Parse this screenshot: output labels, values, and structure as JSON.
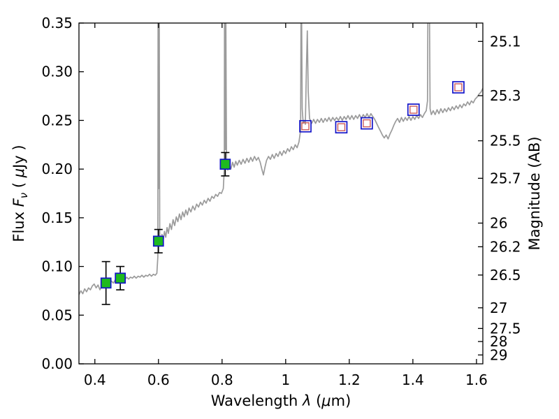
{
  "figure": {
    "background": "#ffffff"
  },
  "chart_data": {
    "type": "line",
    "title": "",
    "xlabel": "Wavelength λ (μm)",
    "ylabel": "Flux Fν ( μJy )",
    "ylabel_right": "Magnitude (AB)",
    "xlabel_parts": [
      {
        "t": "Wavelength  "
      },
      {
        "t": "λ",
        "i": true
      },
      {
        "t": " ("
      },
      {
        "t": "μ",
        "i": true
      },
      {
        "t": "m)"
      }
    ],
    "ylabel_left_parts": [
      {
        "t": "Flux  "
      },
      {
        "t": "F",
        "i": true
      },
      {
        "t": "ν",
        "i": true,
        "sub": true
      },
      {
        "t": "  ( "
      },
      {
        "t": "μ",
        "i": true
      },
      {
        "t": "Jy )"
      }
    ],
    "xlim": [
      0.35,
      1.62
    ],
    "ylim": [
      0.0,
      0.35
    ],
    "grid": false,
    "legend": null,
    "xticks": [
      0.4,
      0.6,
      0.8,
      1.0,
      1.2,
      1.4,
      1.6
    ],
    "xtick_labels": [
      "0.4",
      "0.6",
      "0.8",
      "1",
      "1.2",
      "1.4",
      "1.6"
    ],
    "yticks_left": [
      0.0,
      0.05,
      0.1,
      0.15,
      0.2,
      0.25,
      0.3,
      0.35
    ],
    "ytick_labels_left": [
      "0.00",
      "0.05",
      "0.10",
      "0.15",
      "0.20",
      "0.25",
      "0.30",
      "0.35"
    ],
    "right_axis": {
      "label": "Magnitude (AB)",
      "tick_magnitudes": [
        25.1,
        25.3,
        25.5,
        25.7,
        26,
        26.2,
        26.5,
        27,
        27.5,
        28,
        29
      ],
      "tick_labels": [
        "25.1",
        "25.3",
        "25.5",
        "25.7",
        "26",
        "26.2",
        "26.5",
        "27",
        "27.5",
        "28",
        "29"
      ],
      "ab_zeropoint": 23.9
    },
    "colors": {
      "spectrum": "#9b9b9b",
      "observed_face": "#1fba1f",
      "marker_edge_blue": "#1414c8",
      "model_inner_red": "#cc5a5a",
      "errorbar": "#000000",
      "axis": "#000000"
    },
    "series": [
      {
        "name": "model-spectrum",
        "style": "line",
        "points": [
          [
            0.35,
            0.071
          ],
          [
            0.356,
            0.075
          ],
          [
            0.362,
            0.072
          ],
          [
            0.368,
            0.077
          ],
          [
            0.374,
            0.074
          ],
          [
            0.38,
            0.078
          ],
          [
            0.386,
            0.076
          ],
          [
            0.392,
            0.08
          ],
          [
            0.398,
            0.082
          ],
          [
            0.404,
            0.078
          ],
          [
            0.41,
            0.081
          ],
          [
            0.416,
            0.076
          ],
          [
            0.422,
            0.08
          ],
          [
            0.428,
            0.083
          ],
          [
            0.434,
            0.08
          ],
          [
            0.44,
            0.084
          ],
          [
            0.446,
            0.082
          ],
          [
            0.452,
            0.085
          ],
          [
            0.458,
            0.083
          ],
          [
            0.464,
            0.086
          ],
          [
            0.47,
            0.084
          ],
          [
            0.476,
            0.087
          ],
          [
            0.482,
            0.085
          ],
          [
            0.488,
            0.088
          ],
          [
            0.494,
            0.086
          ],
          [
            0.5,
            0.089
          ],
          [
            0.506,
            0.087
          ],
          [
            0.512,
            0.089
          ],
          [
            0.518,
            0.088
          ],
          [
            0.524,
            0.09
          ],
          [
            0.53,
            0.088
          ],
          [
            0.536,
            0.09
          ],
          [
            0.542,
            0.089
          ],
          [
            0.548,
            0.091
          ],
          [
            0.554,
            0.089
          ],
          [
            0.56,
            0.091
          ],
          [
            0.566,
            0.09
          ],
          [
            0.572,
            0.092
          ],
          [
            0.578,
            0.09
          ],
          [
            0.584,
            0.092
          ],
          [
            0.59,
            0.091
          ],
          [
            0.595,
            0.093
          ],
          [
            0.598,
            0.11
          ],
          [
            0.599,
            0.42
          ],
          [
            0.601,
            0.18
          ],
          [
            0.602,
            0.42
          ],
          [
            0.604,
            0.13
          ],
          [
            0.607,
            0.124
          ],
          [
            0.611,
            0.133
          ],
          [
            0.615,
            0.127
          ],
          [
            0.619,
            0.136
          ],
          [
            0.623,
            0.13
          ],
          [
            0.627,
            0.14
          ],
          [
            0.631,
            0.134
          ],
          [
            0.636,
            0.144
          ],
          [
            0.641,
            0.138
          ],
          [
            0.646,
            0.148
          ],
          [
            0.651,
            0.142
          ],
          [
            0.656,
            0.151
          ],
          [
            0.661,
            0.146
          ],
          [
            0.666,
            0.154
          ],
          [
            0.671,
            0.148
          ],
          [
            0.676,
            0.156
          ],
          [
            0.681,
            0.151
          ],
          [
            0.686,
            0.158
          ],
          [
            0.691,
            0.153
          ],
          [
            0.696,
            0.16
          ],
          [
            0.702,
            0.156
          ],
          [
            0.708,
            0.162
          ],
          [
            0.714,
            0.158
          ],
          [
            0.72,
            0.164
          ],
          [
            0.726,
            0.161
          ],
          [
            0.732,
            0.166
          ],
          [
            0.738,
            0.163
          ],
          [
            0.744,
            0.168
          ],
          [
            0.75,
            0.165
          ],
          [
            0.756,
            0.17
          ],
          [
            0.762,
            0.167
          ],
          [
            0.768,
            0.172
          ],
          [
            0.774,
            0.17
          ],
          [
            0.78,
            0.174
          ],
          [
            0.786,
            0.172
          ],
          [
            0.792,
            0.176
          ],
          [
            0.798,
            0.175
          ],
          [
            0.804,
            0.18
          ],
          [
            0.807,
            0.2
          ],
          [
            0.808,
            0.42
          ],
          [
            0.81,
            0.22
          ],
          [
            0.811,
            0.42
          ],
          [
            0.814,
            0.205
          ],
          [
            0.818,
            0.199
          ],
          [
            0.823,
            0.205
          ],
          [
            0.828,
            0.2
          ],
          [
            0.833,
            0.207
          ],
          [
            0.838,
            0.202
          ],
          [
            0.843,
            0.208
          ],
          [
            0.848,
            0.204
          ],
          [
            0.854,
            0.209
          ],
          [
            0.86,
            0.205
          ],
          [
            0.866,
            0.21
          ],
          [
            0.872,
            0.206
          ],
          [
            0.878,
            0.211
          ],
          [
            0.884,
            0.207
          ],
          [
            0.89,
            0.212
          ],
          [
            0.896,
            0.208
          ],
          [
            0.902,
            0.213
          ],
          [
            0.908,
            0.209
          ],
          [
            0.914,
            0.212
          ],
          [
            0.92,
            0.207
          ],
          [
            0.925,
            0.2
          ],
          [
            0.93,
            0.194
          ],
          [
            0.935,
            0.202
          ],
          [
            0.94,
            0.209
          ],
          [
            0.946,
            0.213
          ],
          [
            0.952,
            0.21
          ],
          [
            0.958,
            0.215
          ],
          [
            0.964,
            0.211
          ],
          [
            0.97,
            0.216
          ],
          [
            0.976,
            0.213
          ],
          [
            0.982,
            0.218
          ],
          [
            0.988,
            0.214
          ],
          [
            0.994,
            0.219
          ],
          [
            1.0,
            0.216
          ],
          [
            1.006,
            0.221
          ],
          [
            1.012,
            0.218
          ],
          [
            1.018,
            0.223
          ],
          [
            1.024,
            0.22
          ],
          [
            1.03,
            0.225
          ],
          [
            1.036,
            0.222
          ],
          [
            1.042,
            0.228
          ],
          [
            1.047,
            0.24
          ],
          [
            1.049,
            0.42
          ],
          [
            1.052,
            0.262
          ],
          [
            1.055,
            0.247
          ],
          [
            1.058,
            0.25
          ],
          [
            1.062,
            0.246
          ],
          [
            1.065,
            0.3
          ],
          [
            1.068,
            0.342
          ],
          [
            1.071,
            0.28
          ],
          [
            1.075,
            0.252
          ],
          [
            1.082,
            0.247
          ],
          [
            1.088,
            0.251
          ],
          [
            1.094,
            0.247
          ],
          [
            1.1,
            0.251
          ],
          [
            1.106,
            0.248
          ],
          [
            1.112,
            0.252
          ],
          [
            1.118,
            0.248
          ],
          [
            1.124,
            0.252
          ],
          [
            1.13,
            0.249
          ],
          [
            1.136,
            0.253
          ],
          [
            1.142,
            0.249
          ],
          [
            1.148,
            0.253
          ],
          [
            1.154,
            0.25
          ],
          [
            1.16,
            0.253
          ],
          [
            1.166,
            0.25
          ],
          [
            1.172,
            0.254
          ],
          [
            1.178,
            0.25
          ],
          [
            1.184,
            0.254
          ],
          [
            1.19,
            0.251
          ],
          [
            1.196,
            0.255
          ],
          [
            1.202,
            0.251
          ],
          [
            1.208,
            0.255
          ],
          [
            1.214,
            0.251
          ],
          [
            1.22,
            0.255
          ],
          [
            1.226,
            0.252
          ],
          [
            1.232,
            0.256
          ],
          [
            1.238,
            0.252
          ],
          [
            1.244,
            0.256
          ],
          [
            1.25,
            0.253
          ],
          [
            1.256,
            0.257
          ],
          [
            1.262,
            0.253
          ],
          [
            1.268,
            0.257
          ],
          [
            1.274,
            0.254
          ],
          [
            1.28,
            0.251
          ],
          [
            1.286,
            0.247
          ],
          [
            1.292,
            0.243
          ],
          [
            1.298,
            0.239
          ],
          [
            1.304,
            0.235
          ],
          [
            1.31,
            0.232
          ],
          [
            1.316,
            0.235
          ],
          [
            1.322,
            0.231
          ],
          [
            1.328,
            0.236
          ],
          [
            1.334,
            0.24
          ],
          [
            1.34,
            0.245
          ],
          [
            1.346,
            0.249
          ],
          [
            1.352,
            0.252
          ],
          [
            1.358,
            0.248
          ],
          [
            1.364,
            0.253
          ],
          [
            1.37,
            0.249
          ],
          [
            1.376,
            0.253
          ],
          [
            1.382,
            0.25
          ],
          [
            1.388,
            0.254
          ],
          [
            1.394,
            0.25
          ],
          [
            1.4,
            0.254
          ],
          [
            1.406,
            0.251
          ],
          [
            1.412,
            0.255
          ],
          [
            1.418,
            0.252
          ],
          [
            1.424,
            0.256
          ],
          [
            1.43,
            0.253
          ],
          [
            1.436,
            0.257
          ],
          [
            1.442,
            0.26
          ],
          [
            1.446,
            0.27
          ],
          [
            1.448,
            0.42
          ],
          [
            1.451,
            0.42
          ],
          [
            1.454,
            0.262
          ],
          [
            1.458,
            0.256
          ],
          [
            1.464,
            0.26
          ],
          [
            1.47,
            0.256
          ],
          [
            1.476,
            0.261
          ],
          [
            1.482,
            0.257
          ],
          [
            1.488,
            0.262
          ],
          [
            1.494,
            0.258
          ],
          [
            1.5,
            0.262
          ],
          [
            1.506,
            0.259
          ],
          [
            1.512,
            0.263
          ],
          [
            1.518,
            0.26
          ],
          [
            1.524,
            0.264
          ],
          [
            1.53,
            0.261
          ],
          [
            1.536,
            0.265
          ],
          [
            1.542,
            0.262
          ],
          [
            1.548,
            0.266
          ],
          [
            1.554,
            0.263
          ],
          [
            1.56,
            0.267
          ],
          [
            1.566,
            0.265
          ],
          [
            1.572,
            0.269
          ],
          [
            1.578,
            0.266
          ],
          [
            1.584,
            0.27
          ],
          [
            1.59,
            0.268
          ],
          [
            1.596,
            0.272
          ],
          [
            1.602,
            0.274
          ],
          [
            1.608,
            0.277
          ],
          [
            1.614,
            0.279
          ],
          [
            1.62,
            0.283
          ]
        ]
      },
      {
        "name": "observed-photometry",
        "style": "filled-square-with-errorbar",
        "points": [
          {
            "x": 0.435,
            "y": 0.083,
            "yerr": 0.022
          },
          {
            "x": 0.48,
            "y": 0.088,
            "yerr": 0.012
          },
          {
            "x": 0.6,
            "y": 0.126,
            "yerr": 0.012
          },
          {
            "x": 0.81,
            "y": 0.205,
            "yerr": 0.012
          }
        ]
      },
      {
        "name": "model-photometry",
        "style": "open-double-square",
        "points": [
          {
            "x": 1.062,
            "y": 0.244
          },
          {
            "x": 1.175,
            "y": 0.243
          },
          {
            "x": 1.255,
            "y": 0.247
          },
          {
            "x": 1.402,
            "y": 0.261
          },
          {
            "x": 1.543,
            "y": 0.284
          }
        ]
      }
    ]
  }
}
